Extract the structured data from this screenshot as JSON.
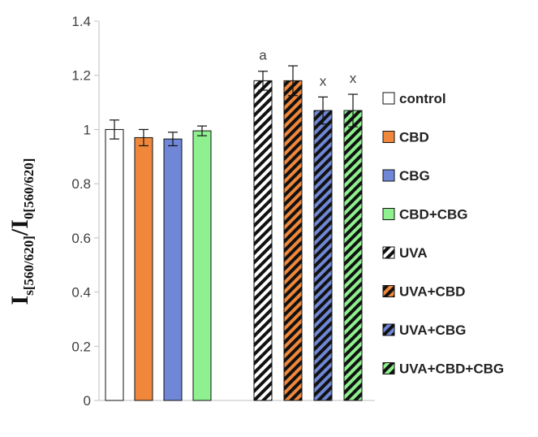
{
  "chart_data": {
    "type": "bar",
    "title": "",
    "xlabel": "",
    "ylabel": {
      "main": "I",
      "sub1": "s[560/620]",
      "mid": "/I",
      "sub2": "0[560/620]"
    },
    "ylim": [
      0,
      1.4
    ],
    "yticks": [
      0,
      0.2,
      0.4,
      0.6,
      0.8,
      1,
      1.2,
      1.4
    ],
    "ytick_labels": [
      "0",
      "0.2",
      "0.4",
      "0.6",
      "0.8",
      "1",
      "1.2",
      "1.4"
    ],
    "series": [
      {
        "name": "control",
        "value": 1.0,
        "error": 0.035,
        "color": "#ffffff",
        "hatched": false,
        "annotation": ""
      },
      {
        "name": "CBD",
        "value": 0.97,
        "error": 0.03,
        "color": "#f0873a",
        "hatched": false,
        "annotation": ""
      },
      {
        "name": "CBG",
        "value": 0.965,
        "error": 0.025,
        "color": "#6f87d6",
        "hatched": false,
        "annotation": ""
      },
      {
        "name": "CBD+CBG",
        "value": 0.995,
        "error": 0.018,
        "color": "#8ef08e",
        "hatched": false,
        "annotation": ""
      },
      {
        "name": "UVA",
        "value": 1.18,
        "error": 0.035,
        "color": "#ffffff",
        "hatched": true,
        "annotation": "a"
      },
      {
        "name": "UVA+CBD",
        "value": 1.18,
        "error": 0.055,
        "color": "#f0873a",
        "hatched": true,
        "annotation": ""
      },
      {
        "name": "UVA+CBG",
        "value": 1.07,
        "error": 0.05,
        "color": "#6f87d6",
        "hatched": true,
        "annotation": "x"
      },
      {
        "name": "UVA+CBD+CBG",
        "value": 1.07,
        "error": 0.06,
        "color": "#8ef08e",
        "hatched": true,
        "annotation": "x"
      }
    ],
    "legend_position": "right"
  }
}
